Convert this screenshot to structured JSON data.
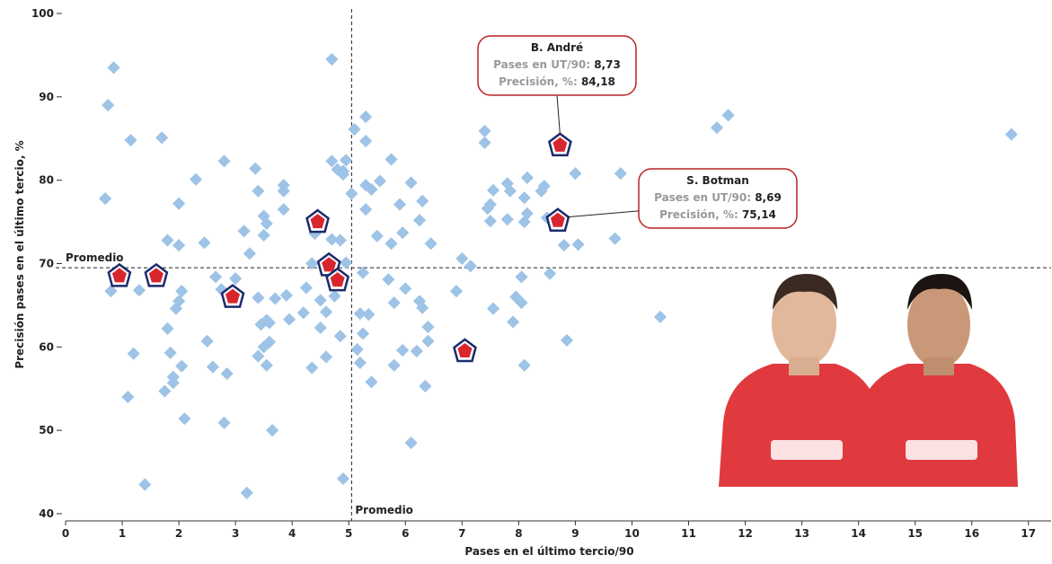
{
  "chart_data": {
    "type": "scatter",
    "x_label": "Pases en el último tercio/90",
    "y_label": "Precisión pases en el último tercio, %",
    "xlim": [
      0,
      17.4
    ],
    "ylim": [
      40,
      100
    ],
    "xticks": [
      0,
      1,
      2,
      3,
      4,
      5,
      6,
      7,
      8,
      9,
      10,
      11,
      12,
      13,
      14,
      15,
      16,
      17
    ],
    "yticks": [
      40,
      50,
      60,
      70,
      80,
      90,
      100
    ],
    "average": {
      "x": 5.05,
      "y": 69.5,
      "x_label": "Promedio",
      "y_label": "Promedio"
    },
    "series": [
      {
        "color": "#9dc3e6",
        "x": [
          0.7,
          0.75,
          0.85,
          0.8,
          1.15,
          1.1,
          1.2,
          1.3,
          1.4,
          1.7,
          1.75,
          1.8,
          1.8,
          1.85,
          1.9,
          1.9,
          1.95,
          2.0,
          2.0,
          2.0,
          2.05,
          2.05,
          2.1,
          2.3,
          2.45,
          2.5,
          2.6,
          2.65,
          2.75,
          2.8,
          2.8,
          2.85,
          3.0,
          3.15,
          3.2,
          3.25,
          3.35,
          3.4,
          3.4,
          3.4,
          3.45,
          3.5,
          3.5,
          3.5,
          3.55,
          3.55,
          3.55,
          3.6,
          3.6,
          3.65,
          3.7,
          3.85,
          3.85,
          3.85,
          3.9,
          3.95,
          4.2,
          4.25,
          4.35,
          4.35,
          4.4,
          4.5,
          4.5,
          4.6,
          4.6,
          4.7,
          4.7,
          4.7,
          4.75,
          4.8,
          4.85,
          4.85,
          4.9,
          4.9,
          4.95,
          4.95,
          4.9,
          5.05,
          5.1,
          5.15,
          5.2,
          5.2,
          5.25,
          5.25,
          5.3,
          5.3,
          5.3,
          5.3,
          5.35,
          5.4,
          5.4,
          5.5,
          5.55,
          5.7,
          5.75,
          5.75,
          5.8,
          5.8,
          5.9,
          5.95,
          5.95,
          6.0,
          6.1,
          6.1,
          6.2,
          6.25,
          6.25,
          6.3,
          6.3,
          6.35,
          6.4,
          6.4,
          6.45,
          6.9,
          7.0,
          7.15,
          7.4,
          7.4,
          7.45,
          7.5,
          7.5,
          7.55,
          7.55,
          7.8,
          7.8,
          7.85,
          7.9,
          7.95,
          8.05,
          8.05,
          8.1,
          8.1,
          8.1,
          8.15,
          8.15,
          8.4,
          8.45,
          8.5,
          8.55,
          8.8,
          8.85,
          9.0,
          9.05,
          9.7,
          9.8,
          10.5,
          11.5,
          11.7,
          16.7
        ],
        "y": [
          77.8,
          89,
          93.5,
          66.7,
          84.8,
          54,
          59.2,
          66.8,
          43.5,
          85.1,
          54.7,
          72.8,
          62.2,
          59.3,
          56.4,
          55.7,
          64.6,
          65.5,
          77.2,
          72.2,
          66.7,
          57.7,
          51.4,
          80.1,
          72.5,
          60.7,
          57.6,
          68.4,
          66.9,
          82.3,
          50.9,
          56.8,
          68.2,
          73.9,
          42.5,
          71.2,
          81.4,
          78.7,
          65.9,
          58.9,
          62.7,
          75.7,
          73.4,
          60,
          57.8,
          63.2,
          74.8,
          60.6,
          62.9,
          50,
          65.8,
          78.7,
          79.4,
          76.5,
          66.2,
          63.3,
          64.1,
          67.1,
          57.5,
          70,
          73.6,
          65.6,
          62.3,
          58.8,
          64.2,
          82.3,
          94.5,
          72.9,
          66.1,
          81.3,
          61.3,
          72.8,
          81.1,
          80.7,
          82.4,
          70.1,
          44.2,
          78.4,
          86.1,
          59.7,
          64,
          58.1,
          61.6,
          68.9,
          76.5,
          79.4,
          84.7,
          87.6,
          63.9,
          55.8,
          78.9,
          73.3,
          79.9,
          68.1,
          72.4,
          82.5,
          57.8,
          65.3,
          77.1,
          73.7,
          59.6,
          67,
          79.7,
          48.5,
          59.5,
          75.2,
          65.5,
          64.7,
          77.5,
          55.3,
          62.4,
          60.7,
          72.4,
          66.7,
          70.6,
          69.7,
          85.9,
          84.5,
          76.6,
          77.1,
          75.1,
          78.8,
          64.6,
          79.6,
          75.3,
          78.7,
          63,
          66,
          68.4,
          65.3,
          57.8,
          75,
          77.9,
          76,
          80.3,
          78.7,
          79.3,
          75.5,
          68.8,
          72.2,
          60.8,
          80.8,
          72.3,
          73,
          80.8,
          63.6,
          86.3,
          87.8,
          85.5
        ]
      },
      {
        "color": "#d7262e",
        "x": [
          0.95,
          1.6,
          2.95,
          4.45,
          4.65,
          4.8,
          7.05,
          8.73,
          8.69
        ],
        "y": [
          68.5,
          68.5,
          66,
          75,
          69.8,
          68,
          59.5,
          84.18,
          75.14
        ]
      }
    ],
    "annotations": [
      {
        "title": "B. André",
        "point": 7,
        "lines": [
          {
            "label": "Pases en UT/90:",
            "value": "8,73"
          },
          {
            "label": "Precisión, %:",
            "value": "84,18"
          }
        ]
      },
      {
        "title": "S. Botman",
        "point": 8,
        "lines": [
          {
            "label": "Pases en UT/90:",
            "value": "8,69"
          },
          {
            "label": "Precisión, %:",
            "value": "75,14"
          }
        ]
      }
    ]
  }
}
